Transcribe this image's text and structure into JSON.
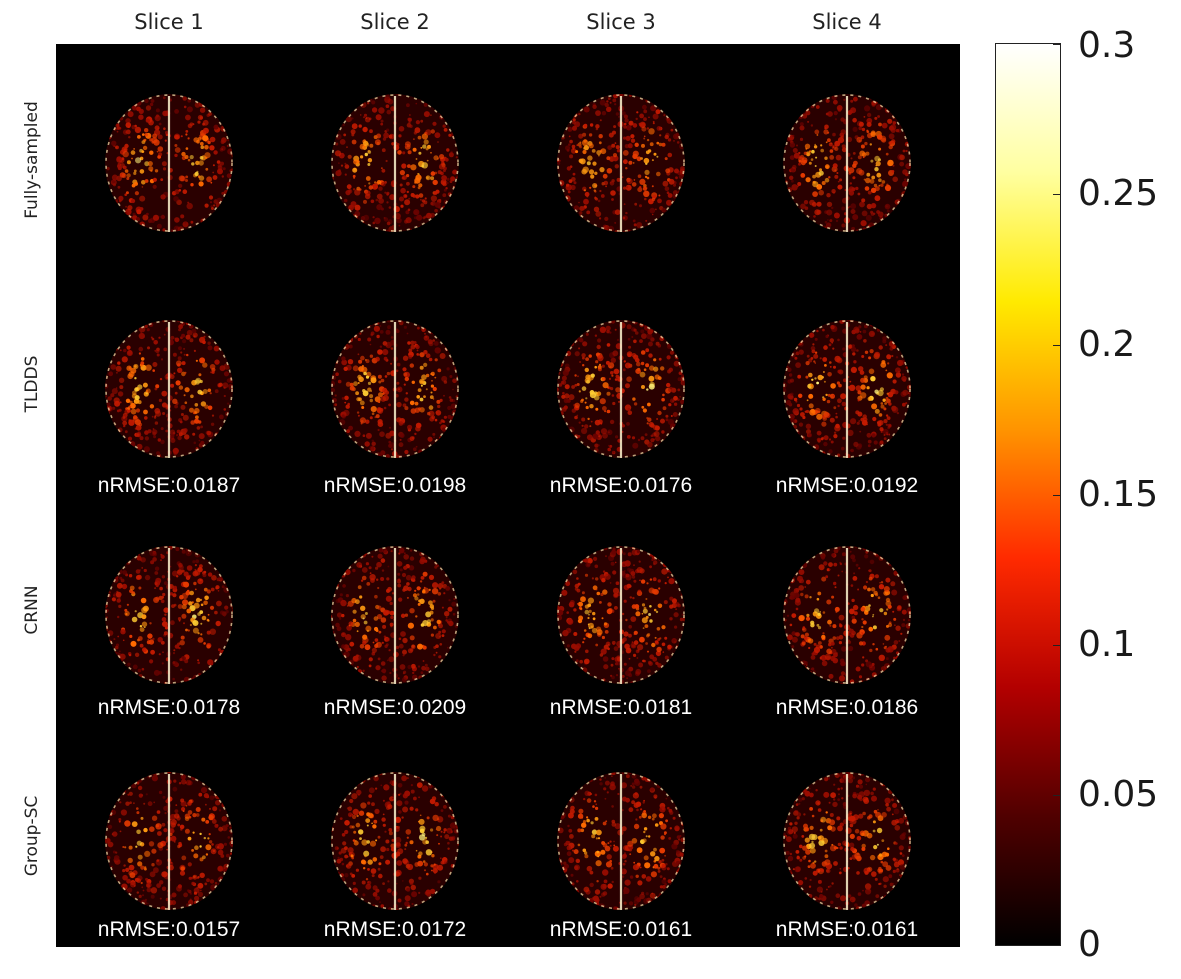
{
  "column_titles": [
    "Slice 1",
    "Slice 2",
    "Slice 3",
    "Slice 4"
  ],
  "rows": [
    {
      "label": "Fully-sampled",
      "metrics": []
    },
    {
      "label": "TLDDS",
      "metrics": [
        "nRMSE:0.0187",
        "nRMSE:0.0198",
        "nRMSE:0.0176",
        "nRMSE:0.0192"
      ]
    },
    {
      "label": "CRNN",
      "metrics": [
        "nRMSE:0.0178",
        "nRMSE:0.0209",
        "nRMSE:0.0181",
        "nRMSE:0.0186"
      ]
    },
    {
      "label": "Group-SC",
      "metrics": [
        "nRMSE:0.0157",
        "nRMSE:0.0172",
        "nRMSE:0.0161",
        "nRMSE:0.0161"
      ]
    }
  ],
  "colorbar": {
    "ticks": [
      "0.3",
      "0.25",
      "0.2",
      "0.15",
      "0.1",
      "0.05",
      "0"
    ],
    "colors": [
      "#000000",
      "#500000",
      "#b30000",
      "#ff2a00",
      "#ff9300",
      "#ffea00",
      "#ffffa0",
      "#ffffff"
    ]
  }
}
